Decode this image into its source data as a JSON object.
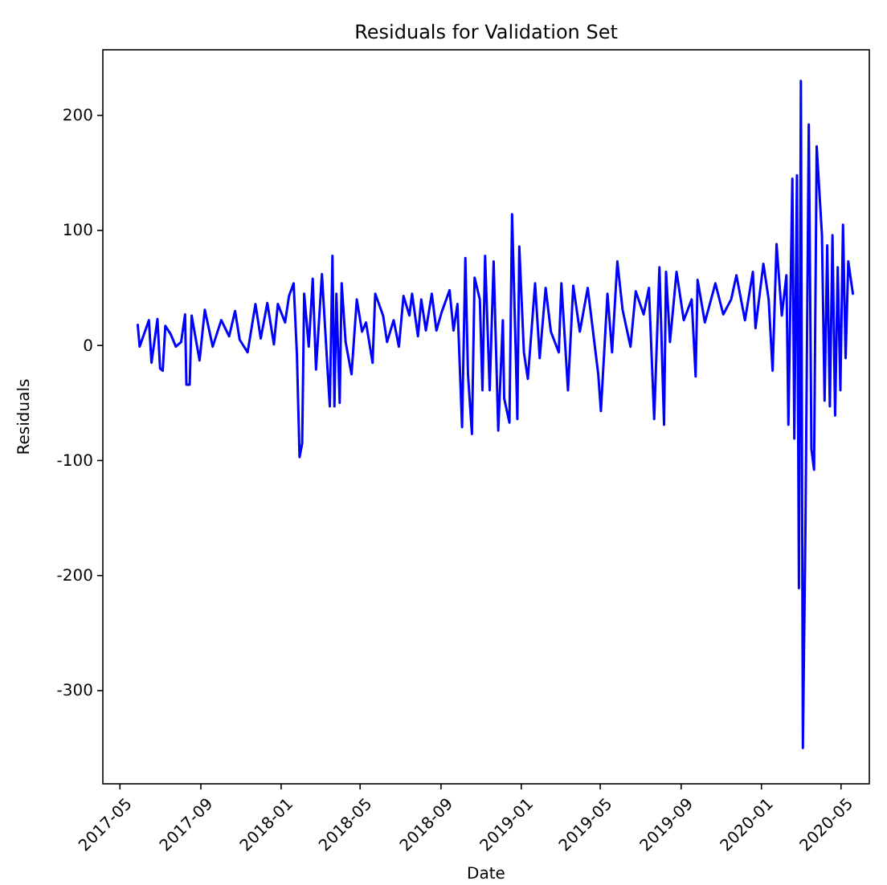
{
  "chart_data": {
    "type": "line",
    "title": "Residuals for Validation Set",
    "xlabel": "Date",
    "ylabel": "Residuals",
    "x": [
      "2017-05-28",
      "2017-05-31",
      "2017-06-14",
      "2017-06-18",
      "2017-06-27",
      "2017-07-01",
      "2017-07-05",
      "2017-07-09",
      "2017-07-17",
      "2017-07-25",
      "2017-08-02",
      "2017-08-08",
      "2017-08-10",
      "2017-08-15",
      "2017-08-18",
      "2017-08-30",
      "2017-09-07",
      "2017-09-19",
      "2017-10-02",
      "2017-10-14",
      "2017-10-23",
      "2017-10-30",
      "2017-11-11",
      "2017-11-23",
      "2017-12-01",
      "2017-12-11",
      "2017-12-21",
      "2017-12-27",
      "2018-01-07",
      "2018-01-13",
      "2018-01-20",
      "2018-01-25",
      "2018-01-29",
      "2018-02-02",
      "2018-02-05",
      "2018-02-12",
      "2018-02-18",
      "2018-02-23",
      "2018-03-04",
      "2018-03-13",
      "2018-03-16",
      "2018-03-20",
      "2018-03-23",
      "2018-03-26",
      "2018-03-31",
      "2018-04-03",
      "2018-04-09",
      "2018-04-18",
      "2018-04-26",
      "2018-05-04",
      "2018-05-10",
      "2018-05-20",
      "2018-05-24",
      "2018-06-05",
      "2018-06-11",
      "2018-06-21",
      "2018-06-29",
      "2018-07-06",
      "2018-07-15",
      "2018-07-19",
      "2018-07-28",
      "2018-08-02",
      "2018-08-09",
      "2018-08-18",
      "2018-08-25",
      "2018-09-02",
      "2018-09-14",
      "2018-09-20",
      "2018-09-26",
      "2018-10-03",
      "2018-10-08",
      "2018-10-12",
      "2018-10-18",
      "2018-10-22",
      "2018-10-30",
      "2018-11-03",
      "2018-11-07",
      "2018-11-14",
      "2018-11-20",
      "2018-11-27",
      "2018-12-04",
      "2018-12-06",
      "2018-12-14",
      "2018-12-18",
      "2018-12-24",
      "2018-12-26",
      "2018-12-29",
      "2019-01-05",
      "2019-01-11",
      "2019-01-22",
      "2019-01-29",
      "2019-02-07",
      "2019-02-15",
      "2019-02-27",
      "2019-03-03",
      "2019-03-13",
      "2019-03-21",
      "2019-03-31",
      "2019-04-12",
      "2019-04-28",
      "2019-05-02",
      "2019-05-12",
      "2019-05-19",
      "2019-05-27",
      "2019-06-04",
      "2019-06-16",
      "2019-06-24",
      "2019-07-06",
      "2019-07-14",
      "2019-07-22",
      "2019-07-30",
      "2019-08-06",
      "2019-08-09",
      "2019-08-15",
      "2019-08-25",
      "2019-09-05",
      "2019-09-17",
      "2019-09-23",
      "2019-09-26",
      "2019-10-07",
      "2019-10-23",
      "2019-11-04",
      "2019-11-16",
      "2019-11-24",
      "2019-12-07",
      "2019-12-19",
      "2019-12-23",
      "2020-01-04",
      "2020-01-12",
      "2020-01-18",
      "2020-01-24",
      "2020-02-01",
      "2020-02-08",
      "2020-02-11",
      "2020-02-17",
      "2020-02-20",
      "2020-02-24",
      "2020-02-27",
      "2020-03-01",
      "2020-03-04",
      "2020-03-08",
      "2020-03-13",
      "2020-03-17",
      "2020-03-21",
      "2020-03-25",
      "2020-04-02",
      "2020-04-06",
      "2020-04-10",
      "2020-04-14",
      "2020-04-18",
      "2020-04-22",
      "2020-04-26",
      "2020-04-30",
      "2020-05-04",
      "2020-05-08",
      "2020-05-12",
      "2020-05-19"
    ],
    "series": [
      {
        "color": "#0000ff",
        "values": [
          18,
          -1,
          22,
          -15,
          23,
          -20,
          -22,
          17,
          10,
          -1,
          3,
          27,
          -34,
          -34,
          26,
          -13,
          31,
          -1,
          22,
          8,
          30,
          5,
          -6,
          36,
          6,
          37,
          1,
          36,
          20,
          43,
          54,
          -8,
          -97,
          -85,
          45,
          -1,
          58,
          -21,
          62,
          -25,
          -53,
          78,
          -53,
          45,
          -50,
          54,
          3,
          -25,
          40,
          12,
          20,
          -15,
          45,
          26,
          3,
          22,
          -1,
          43,
          26,
          45,
          8,
          40,
          13,
          45,
          13,
          29,
          48,
          13,
          36,
          -71,
          76,
          -25,
          -77,
          59,
          40,
          -39,
          78,
          -39,
          73,
          -74,
          22,
          -46,
          -67,
          114,
          -15,
          -64,
          86,
          -6,
          -29,
          54,
          -11,
          50,
          12,
          -6,
          54,
          -39,
          52,
          12,
          50,
          -25,
          -57,
          45,
          -6,
          73,
          31,
          -1,
          47,
          27,
          50,
          -64,
          68,
          -69,
          64,
          3,
          64,
          22,
          40,
          -27,
          57,
          20,
          54,
          27,
          40,
          61,
          22,
          64,
          15,
          71,
          40,
          -22,
          88,
          26,
          61,
          -69,
          145,
          -81,
          148,
          -211,
          230,
          -350,
          -155,
          192,
          -90,
          -108,
          173,
          96,
          -48,
          87,
          -53,
          96,
          -61,
          68,
          -39,
          105,
          -11,
          73,
          45
        ]
      }
    ],
    "xlim": [
      "2017-04-05",
      "2020-06-13"
    ],
    "xticks": [
      "2017-05",
      "2017-09",
      "2018-01",
      "2018-05",
      "2018-09",
      "2019-01",
      "2019-05",
      "2019-09",
      "2020-01",
      "2020-05"
    ],
    "ylim": [
      -381,
      257
    ],
    "yticks": [
      -300,
      -200,
      -100,
      0,
      100,
      200
    ],
    "line_style": "solid",
    "marker": "none"
  }
}
